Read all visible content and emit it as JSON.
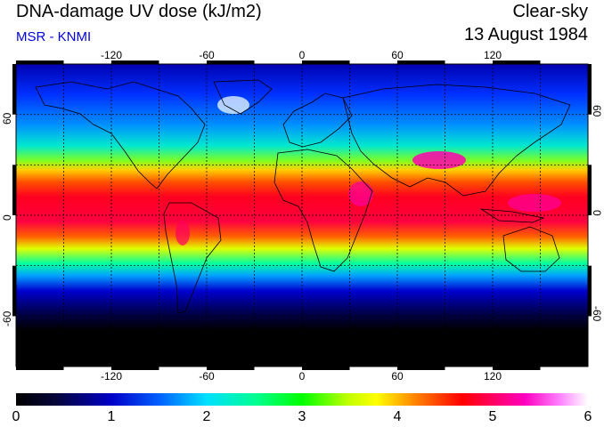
{
  "header": {
    "title": "DNA-damage UV dose (kJ/m2)",
    "source": "MSR - KNMI",
    "condition": "Clear-sky",
    "date": "13 August 1984"
  },
  "map": {
    "projection": "equirectangular",
    "lon_labels": [
      "-120",
      "-60",
      "0",
      "60",
      "120"
    ],
    "lon_values": [
      -120,
      -60,
      0,
      60,
      120
    ],
    "lat_labels": [
      "60",
      "0",
      "-60"
    ],
    "lat_values": [
      60,
      0,
      -60
    ],
    "lon_range": [
      -180,
      180
    ],
    "lat_range": [
      -90,
      90
    ],
    "gridlines": "dotted every 30 degrees"
  },
  "colorbar": {
    "ticks": [
      "0",
      "1",
      "2",
      "3",
      "4",
      "5",
      "6"
    ],
    "min": 0,
    "max": 6,
    "unit": "kJ/m2",
    "colors": [
      "#000000",
      "#0000c8",
      "#00e0ff",
      "#00ff00",
      "#ffff00",
      "#ff0000",
      "#ff00c0",
      "#ffffff"
    ]
  }
}
